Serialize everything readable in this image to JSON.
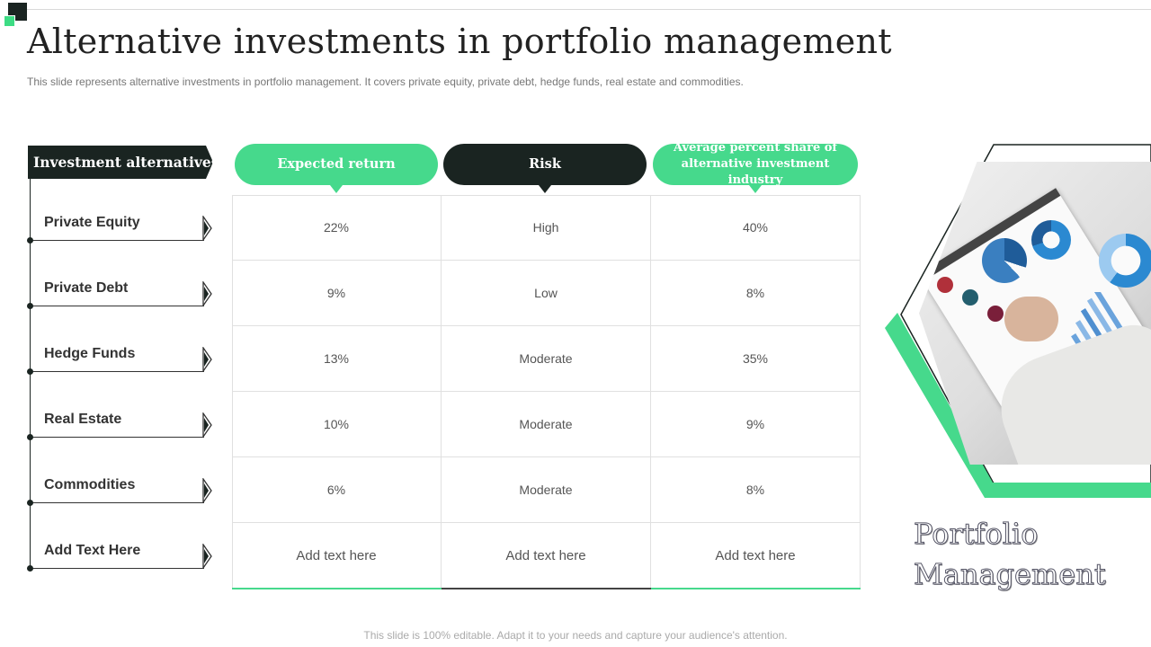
{
  "title": "Alternative investments in portfolio management",
  "subtitle": "This slide represents alternative investments in portfolio management. It covers private equity, private debt, hedge funds, real estate and commodities.",
  "left_header": "Investment alternatives",
  "columns": [
    {
      "label": "Expected return",
      "style": "green"
    },
    {
      "label": "Risk",
      "style": "dark"
    },
    {
      "label": "Average percent share of alternative investment industry",
      "style": "green"
    }
  ],
  "rows": [
    {
      "name": "Private Equity",
      "values": [
        "22%",
        "High",
        "40%"
      ]
    },
    {
      "name": "Private Debt",
      "values": [
        "9%",
        "Low",
        "8%"
      ]
    },
    {
      "name": "Hedge Funds",
      "values": [
        "13%",
        "Moderate",
        "35%"
      ]
    },
    {
      "name": "Real Estate",
      "values": [
        "10%",
        "Moderate",
        "9%"
      ]
    },
    {
      "name": "Commodities",
      "values": [
        "6%",
        "Moderate",
        "8%"
      ]
    },
    {
      "name": "Add Text Here",
      "values": [
        "Add text here",
        "Add text here",
        "Add text here"
      ]
    }
  ],
  "side_title_line1": "Portfolio",
  "side_title_line2": "Management",
  "footer": "This slide is 100% editable. Adapt it to your needs and capture your audience's attention.",
  "colors": {
    "accent_green": "#46d98c",
    "dark": "#1a2421"
  }
}
